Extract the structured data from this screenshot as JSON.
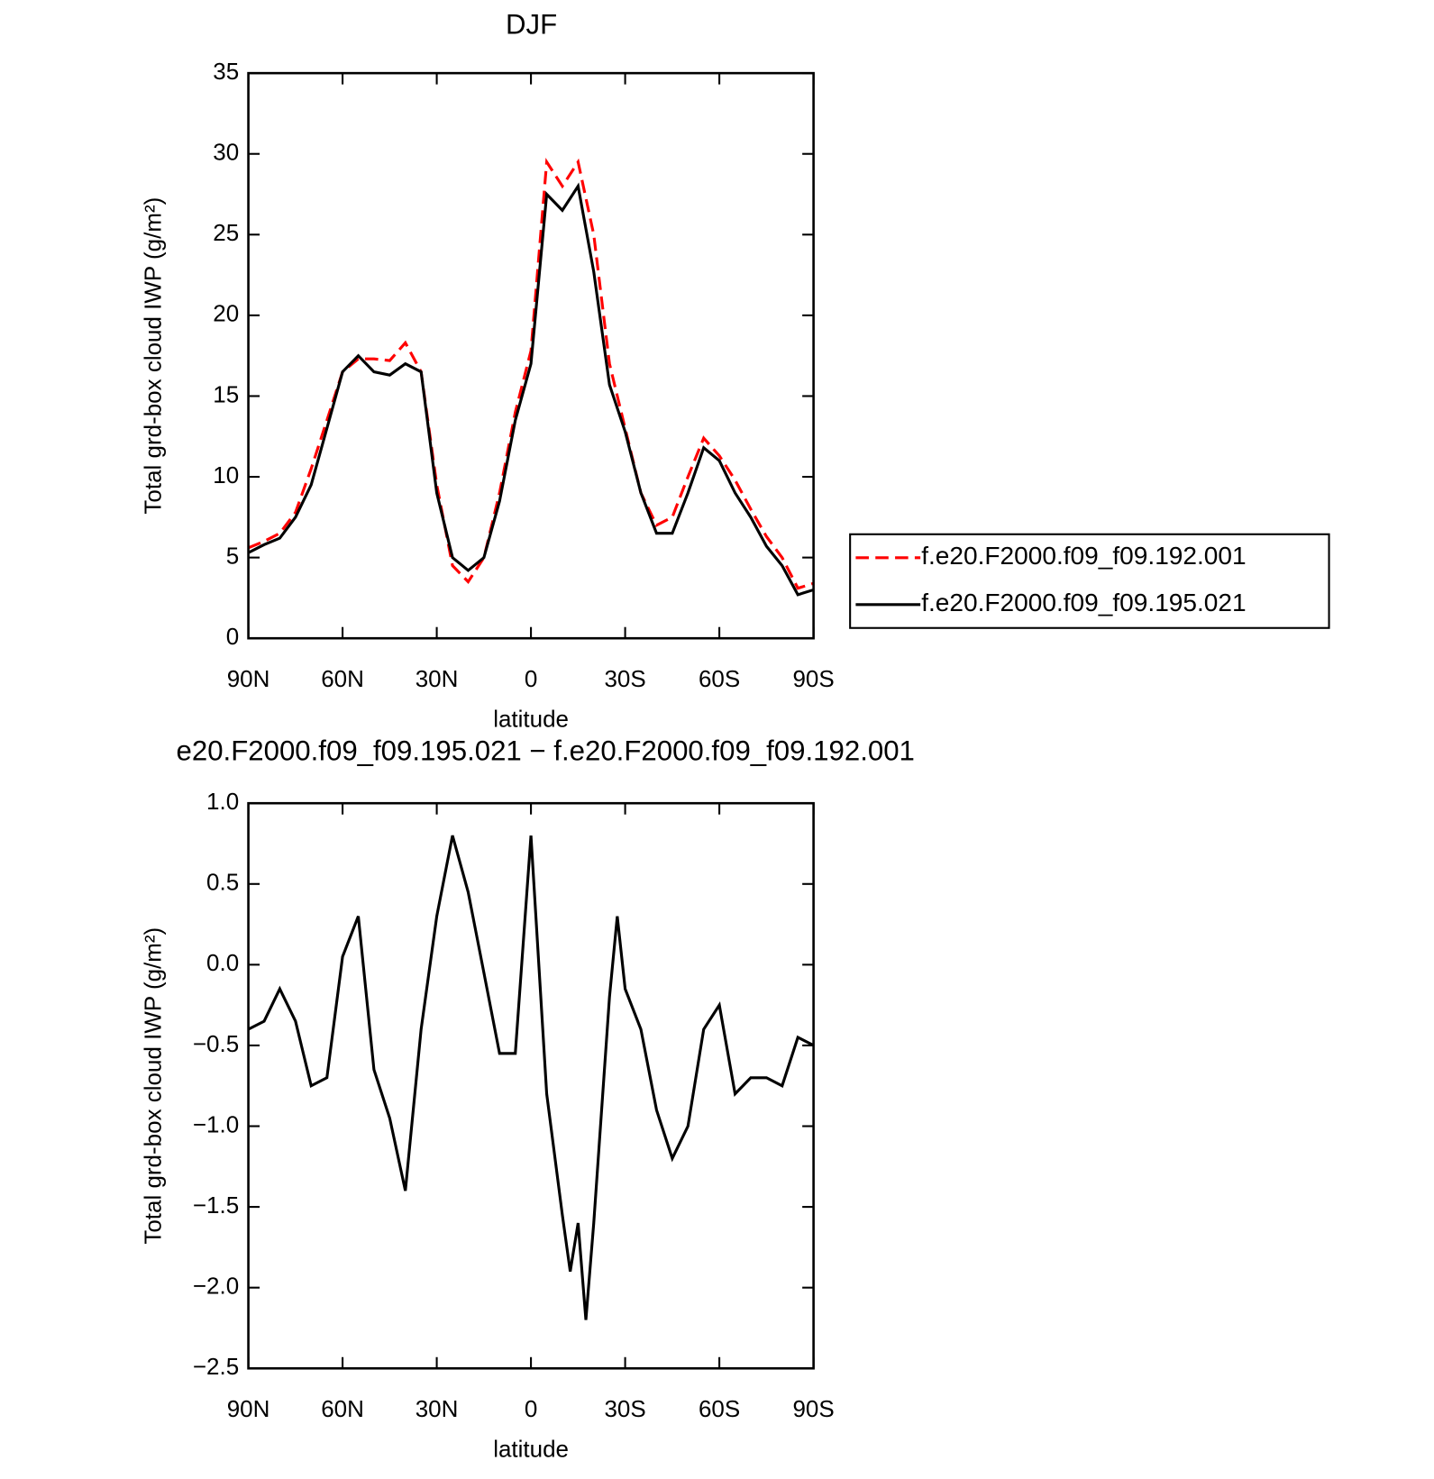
{
  "chart_data": [
    {
      "type": "line",
      "title": "DJF",
      "x_label": "latitude",
      "y_label": "Total grd-box cloud IWP (g/m²)",
      "x": [
        90,
        85,
        80,
        75,
        70,
        65,
        60,
        55,
        50,
        45,
        40,
        35,
        30,
        25,
        20,
        15,
        10,
        5,
        0,
        -5,
        -10,
        -15,
        -20,
        -25,
        -30,
        -35,
        -40,
        -45,
        -50,
        -55,
        -60,
        -65,
        -70,
        -75,
        -80,
        -85,
        -90
      ],
      "series": [
        {
          "name": "f.e20.F2000.f09_f09.192.001",
          "color": "#ff0000",
          "line_style": "dashed",
          "values": [
            5.6,
            6.0,
            6.5,
            7.8,
            10.5,
            13.5,
            16.5,
            17.3,
            17.3,
            17.2,
            18.3,
            16.5,
            9.5,
            4.5,
            3.5,
            5,
            9,
            14,
            17.8,
            29.5,
            28,
            29.5,
            25,
            17,
            13,
            9,
            7,
            7.5,
            10,
            12.4,
            11.3,
            9.8,
            8,
            6.3,
            5,
            3.1,
            3.4
          ]
        },
        {
          "name": "f.e20.F2000.f09_f09.195.021",
          "color": "#000000",
          "line_style": "solid",
          "values": [
            5.3,
            5.8,
            6.2,
            7.5,
            9.5,
            13,
            16.5,
            17.5,
            16.5,
            16.3,
            17,
            16.5,
            9,
            5,
            4.2,
            5,
            8.5,
            13.5,
            17,
            27.5,
            26.5,
            28,
            22.7,
            15.7,
            12.8,
            9,
            6.5,
            6.5,
            9,
            11.8,
            11,
            9,
            7.5,
            5.7,
            4.5,
            2.7,
            3.0
          ]
        }
      ],
      "xlim": [
        90,
        -90
      ],
      "xticks": [
        {
          "value": 90,
          "label": "90N"
        },
        {
          "value": 60,
          "label": "60N"
        },
        {
          "value": 30,
          "label": "30N"
        },
        0,
        {
          "value": -30,
          "label": "30S"
        },
        {
          "value": -60,
          "label": "60S"
        },
        {
          "value": -90,
          "label": "90S"
        }
      ],
      "ylim": [
        0,
        35
      ],
      "yticks": [
        0,
        5,
        10,
        15,
        20,
        25,
        30,
        35
      ],
      "legend": "right"
    },
    {
      "type": "line",
      "title": "e20.F2000.f09_f09.195.021 − f.e20.F2000.f09_f09.192.001",
      "x_label": "latitude",
      "y_label": "Total grd-box cloud IWP (g/m²)",
      "x": [
        90,
        85,
        80,
        75,
        70,
        65,
        60,
        55,
        50,
        45,
        40,
        35,
        30,
        25,
        20,
        15,
        10,
        5,
        0,
        -5,
        -10,
        -12.5,
        -15,
        -17.5,
        -20,
        -25,
        -27.5,
        -30,
        -35,
        -40,
        -45,
        -50,
        -55,
        -60,
        -65,
        -70,
        -75,
        -80,
        -85,
        -90
      ],
      "series": [
        {
          "color": "#000000",
          "line_style": "solid",
          "values": [
            -0.4,
            -0.35,
            -0.15,
            -0.35,
            -0.75,
            -0.7,
            0.05,
            0.3,
            -0.65,
            -0.95,
            -1.4,
            -0.4,
            0.3,
            0.8,
            0.45,
            -0.05,
            -0.55,
            -0.55,
            0.8,
            -0.8,
            -1.55,
            -1.9,
            -1.6,
            -2.2,
            -1.6,
            -0.2,
            0.3,
            -0.15,
            -0.4,
            -0.9,
            -1.2,
            -1.0,
            -0.4,
            -0.25,
            -0.8,
            -0.7,
            -0.7,
            -0.75,
            -0.45,
            -0.5
          ]
        }
      ],
      "xlim": [
        90,
        -90
      ],
      "xticks": [
        {
          "value": 90,
          "label": "90N"
        },
        {
          "value": 60,
          "label": "60N"
        },
        {
          "value": 30,
          "label": "30N"
        },
        0,
        {
          "value": -30,
          "label": "30S"
        },
        {
          "value": -60,
          "label": "60S"
        },
        {
          "value": -90,
          "label": "90S"
        }
      ],
      "ylim": [
        -2.5,
        1.0
      ],
      "yticks": [
        {
          "value": -2.5,
          "label": "−2.5"
        },
        {
          "value": -2.0,
          "label": "−2.0"
        },
        {
          "value": -1.5,
          "label": "−1.5"
        },
        {
          "value": -1.0,
          "label": "−1.0"
        },
        {
          "value": -0.5,
          "label": "−0.5"
        },
        {
          "value": 0.0,
          "label": "0.0"
        },
        {
          "value": 0.5,
          "label": "0.5"
        },
        {
          "value": 1.0,
          "label": "1.0"
        }
      ]
    }
  ]
}
